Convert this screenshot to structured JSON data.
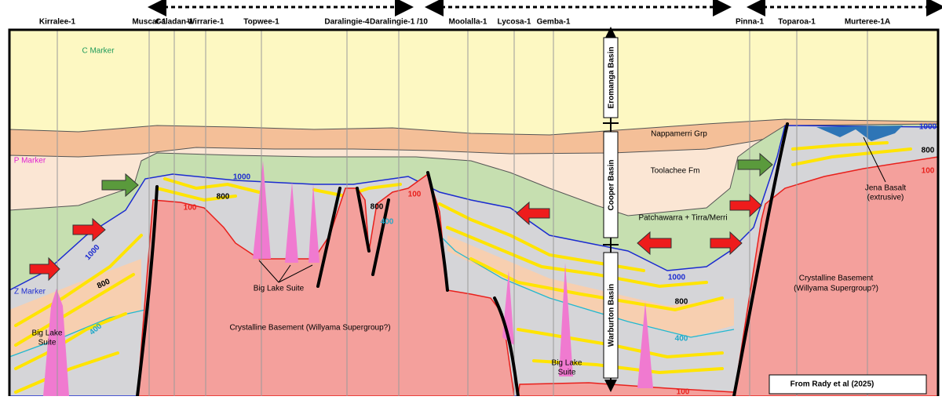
{
  "wells": [
    "Kirralee-1",
    "Muscat-1",
    "Caladan-1",
    "Wirrarie-1",
    "Topwee-1",
    "Daralingie-4",
    "Daralingie-1 /10",
    "Moolalla-1",
    "Lycosa-1",
    "Gemba-1",
    "Pinna-1",
    "Toparoa-1",
    "Murteree-1A"
  ],
  "markers": {
    "c": "C Marker",
    "p": "P Marker",
    "z": "Z Marker"
  },
  "basins": [
    "Eromanga Basin",
    "Cooper Basin",
    "Warburton Basin"
  ],
  "units": {
    "nappamerri": "Nappamerri Grp",
    "toolachee": "Toolachee Fm",
    "patchawarra": "Patchawarra + Tirra/Merri",
    "basement_center": "Crystalline Basement (Willyama Supergroup?)",
    "basement_right": [
      "Crystalline Basement",
      "(Willyama Supergroup?)"
    ],
    "jena_basalt": [
      "Jena Basalt",
      "(extrusive)"
    ]
  },
  "big_lake_suite": {
    "left": [
      "Big Lake",
      "Suite"
    ],
    "center": "Big Lake Suite",
    "right": [
      "Big Lake",
      "Suite"
    ]
  },
  "contour_labels": [
    "1000",
    "1000",
    "1000",
    "1000",
    "800",
    "800",
    "800",
    "800",
    "800",
    "400",
    "400",
    "400",
    "100",
    "100",
    "100",
    "100"
  ],
  "source": "From Rady et al (2025)"
}
